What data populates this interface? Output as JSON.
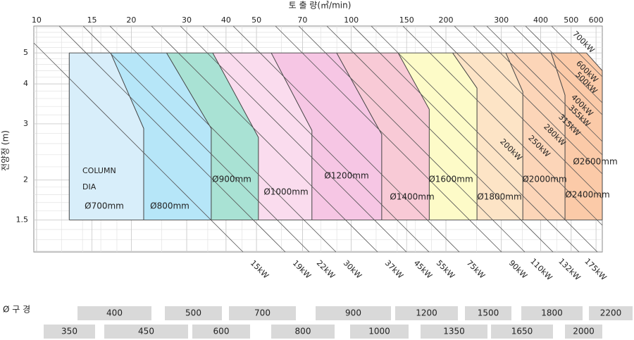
{
  "chart_data": {
    "type": "region-map",
    "xlabel": "토 출 량(㎥/min)",
    "ylabel": "전양정 (m)",
    "log_x": true,
    "log_y": true,
    "grid": true,
    "xlim": [
      9.8,
      628
    ],
    "ylim": [
      1.19,
      6.07
    ],
    "xticks": [
      10,
      15,
      20,
      30,
      40,
      50,
      70,
      100,
      150,
      200,
      300,
      400,
      500,
      600
    ],
    "yticks": [
      1.5,
      2,
      3,
      4,
      5
    ],
    "boundaries": [
      [
        [
          12.7,
          5
        ],
        [
          12.7,
          1.5
        ]
      ],
      [
        [
          17.2,
          5
        ],
        [
          21.9,
          2.9
        ],
        [
          21.9,
          1.5
        ]
      ],
      [
        [
          25.9,
          5
        ],
        [
          35.9,
          2.9
        ],
        [
          35.9,
          1.5
        ]
      ],
      [
        [
          36.3,
          5
        ],
        [
          50.7,
          2.72
        ],
        [
          50.7,
          1.5
        ]
      ],
      [
        [
          55.7,
          5
        ],
        [
          75,
          2.86
        ],
        [
          75,
          1.5
        ]
      ],
      [
        [
          89.9,
          5
        ],
        [
          125,
          2.78
        ],
        [
          125,
          1.5
        ]
      ],
      [
        [
          141,
          5
        ],
        [
          177,
          3.33
        ],
        [
          177,
          1.5
        ]
      ],
      [
        [
          210,
          5
        ],
        [
          251,
          3.88
        ],
        [
          251,
          1.5
        ]
      ],
      [
        [
          310,
          5
        ],
        [
          351,
          3.78
        ],
        [
          351,
          1.5
        ]
      ],
      [
        [
          432,
          5
        ],
        [
          478,
          3.69
        ],
        [
          478,
          1.5
        ]
      ],
      [
        [
          559,
          5
        ],
        [
          628,
          4.4
        ],
        [
          628,
          1.5
        ]
      ]
    ],
    "annotation": [
      "COLUMN",
      "DIA"
    ],
    "regions": [
      {
        "name": "Ø700mm",
        "color": "#d8eefa"
      },
      {
        "name": "Ø800mm",
        "color": "#b6e6f8"
      },
      {
        "name": "Ø900mm",
        "color": "#a9e2d4"
      },
      {
        "name": "Ø1000mm",
        "color": "#fadcee"
      },
      {
        "name": "Ø1200mm",
        "color": "#f6c6e4"
      },
      {
        "name": "Ø1400mm",
        "color": "#f8cad6"
      },
      {
        "name": "Ø1600mm",
        "color": "#fdfbc8"
      },
      {
        "name": "Ø1800mm",
        "color": "#fde4c6"
      },
      {
        "name": "Ø2000mm",
        "color": "#fcd5b8"
      },
      {
        "name": "Ø2400mm",
        "color": "#fbcaa8"
      }
    ],
    "extra_label": "Ø2600mm",
    "power_lines": [
      "15kW",
      "19kW",
      "22kW",
      "30kW",
      "37kW",
      "45kW",
      "55kW",
      "75kW",
      "90kW",
      "110kW",
      "132kW",
      "175kW",
      "200kW",
      "250kW",
      "280kW",
      "315kW",
      "355kW",
      "400kW",
      "500kW",
      "600kW",
      "700kW"
    ]
  },
  "diameter_scale": {
    "label": "Ø 구 경",
    "row1": [
      400,
      500,
      700,
      900,
      1200,
      1500,
      1800,
      2200
    ],
    "row2": [
      350,
      450,
      600,
      800,
      1000,
      1350,
      1650,
      2000
    ]
  }
}
